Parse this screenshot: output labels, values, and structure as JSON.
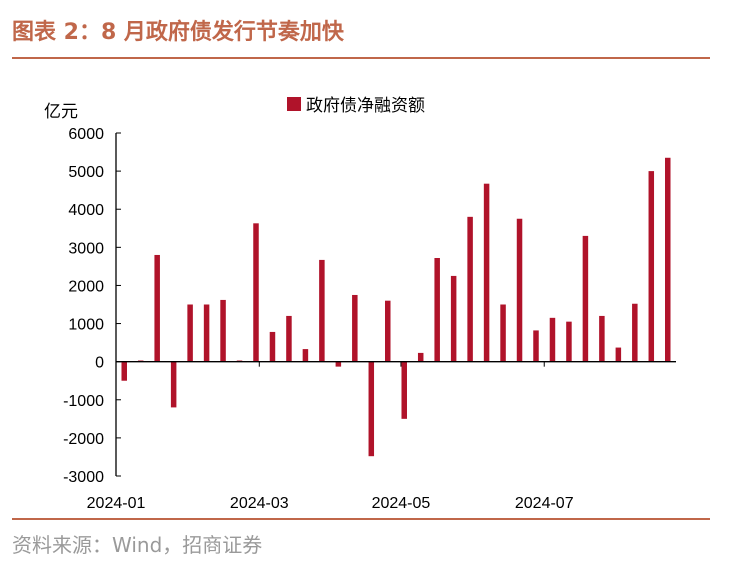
{
  "figure": {
    "title": "图表 2：8 月政府债发行节奏加快",
    "source": "资料来源：Wind，招商证券"
  },
  "colors": {
    "accent": "#c0674a",
    "bar": "#b0132a",
    "source_text": "#9a9a9a"
  },
  "chart_data": {
    "type": "bar",
    "title": "",
    "ylabel": "亿元",
    "xlabel": "",
    "ylim": [
      -3000,
      6000
    ],
    "yticks": [
      -3000,
      -2000,
      -1000,
      0,
      1000,
      2000,
      3000,
      4000,
      5000,
      6000
    ],
    "legend": {
      "label": "政府债净融资额",
      "position": "top-center"
    },
    "grid": false,
    "x_tick_labels": [
      {
        "label": "2024-01",
        "index": 0
      },
      {
        "label": "2024-03",
        "index": 8.7
      },
      {
        "label": "2024-05",
        "index": 17.3
      },
      {
        "label": "2024-07",
        "index": 26
      }
    ],
    "series": [
      {
        "name": "政府债净融资额",
        "values": [
          -500,
          30,
          2800,
          -1200,
          1500,
          1500,
          1620,
          30,
          3630,
          780,
          1200,
          330,
          2670,
          -130,
          1750,
          -2480,
          1600,
          -1500,
          230,
          2720,
          2250,
          3800,
          4670,
          1500,
          3750,
          820,
          1150,
          1050,
          3300,
          1200,
          370,
          1520,
          5000,
          5350
        ]
      }
    ]
  }
}
